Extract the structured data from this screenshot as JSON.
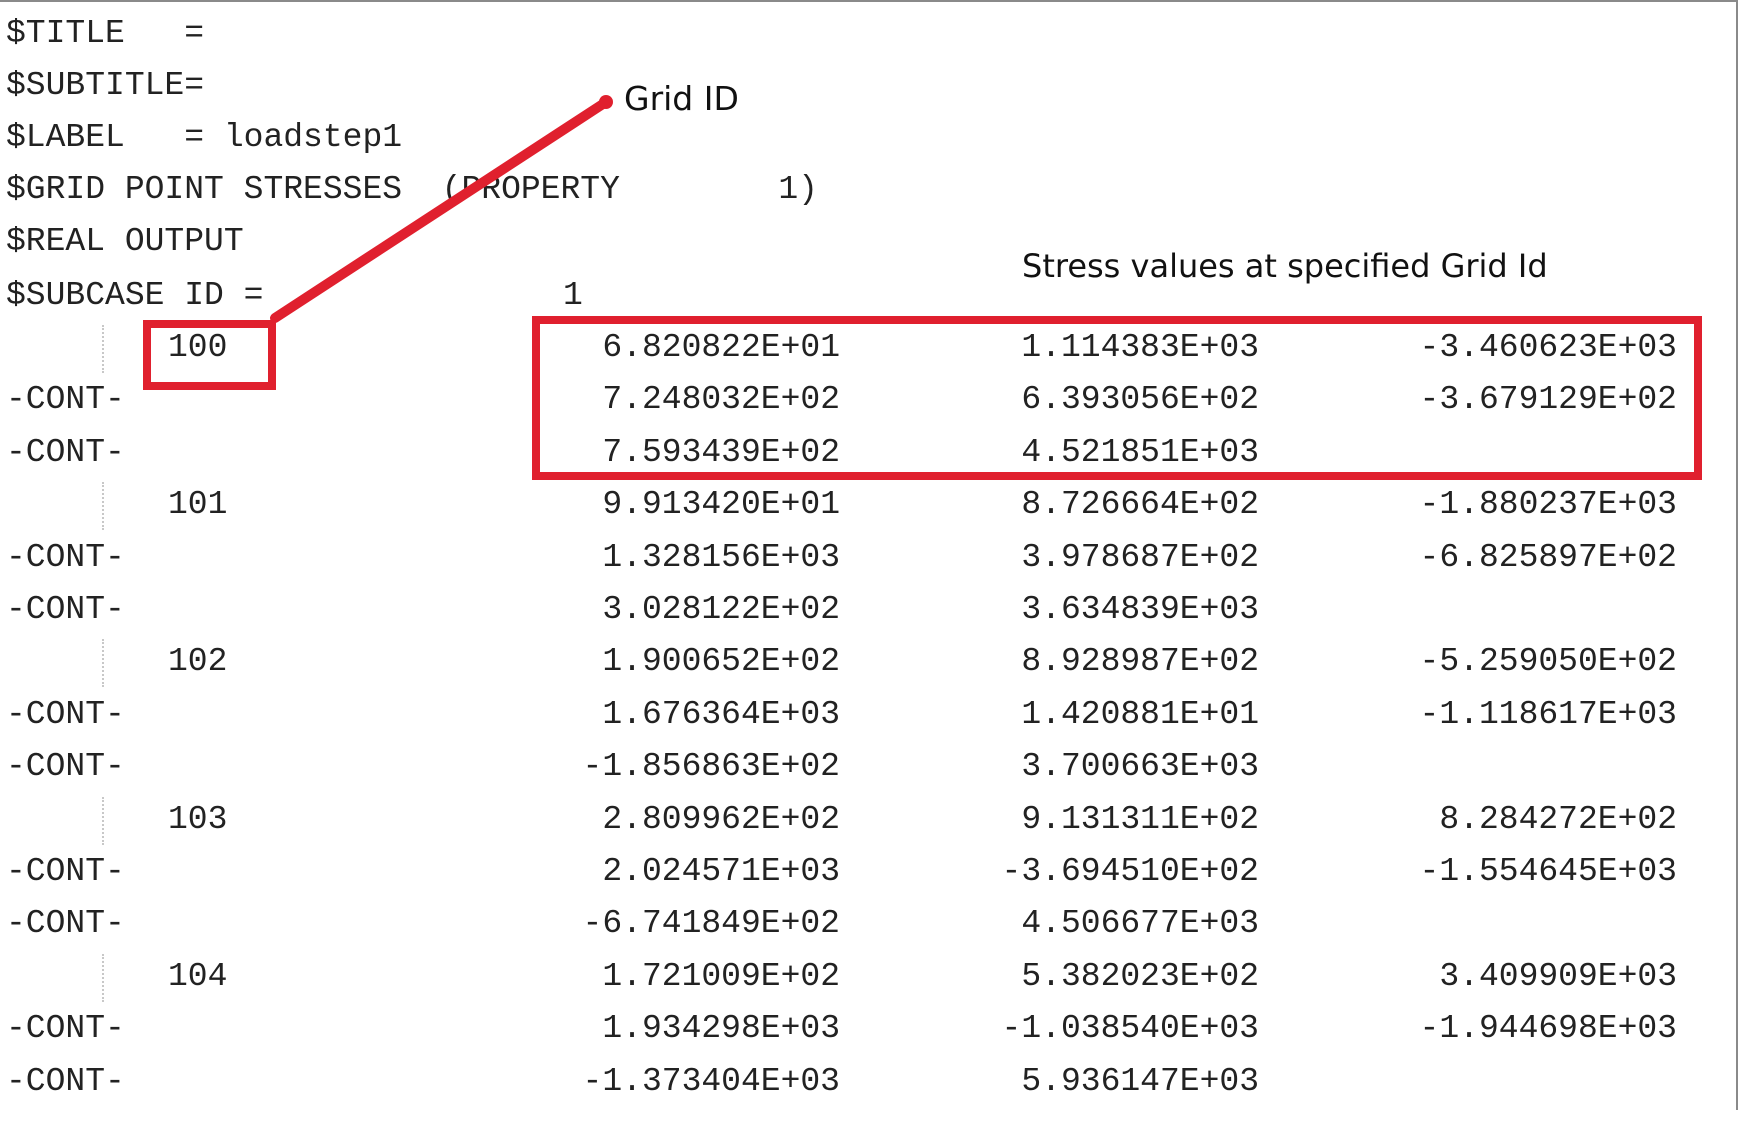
{
  "header": {
    "title_line": "$TITLE   =",
    "subtitle_line": "$SUBTITLE=",
    "label_line": "$LABEL   = loadstep1",
    "grid_stresses_line": "$GRID POINT STRESSES  (PROPERTY        1)",
    "real_output_line": "$REAL OUTPUT",
    "subcase_label": "$SUBCASE ID =",
    "subcase_value": "1"
  },
  "annotations": {
    "grid_id_label": "Grid ID",
    "stress_values_label": "Stress values at specified Grid Id",
    "highlight_color": "#e0202e"
  },
  "table": {
    "cont_label": "-CONT-",
    "grids": [
      {
        "id": "100",
        "rows": [
          [
            "6.820822E+01",
            "1.114383E+03",
            "-3.460623E+03"
          ],
          [
            "7.248032E+02",
            "6.393056E+02",
            "-3.679129E+02"
          ],
          [
            "7.593439E+02",
            "4.521851E+03",
            ""
          ]
        ]
      },
      {
        "id": "101",
        "rows": [
          [
            "9.913420E+01",
            "8.726664E+02",
            "-1.880237E+03"
          ],
          [
            "1.328156E+03",
            "3.978687E+02",
            "-6.825897E+02"
          ],
          [
            "3.028122E+02",
            "3.634839E+03",
            ""
          ]
        ]
      },
      {
        "id": "102",
        "rows": [
          [
            "1.900652E+02",
            "8.928987E+02",
            "-5.259050E+02"
          ],
          [
            "1.676364E+03",
            "1.420881E+01",
            "-1.118617E+03"
          ],
          [
            "-1.856863E+02",
            "3.700663E+03",
            ""
          ]
        ]
      },
      {
        "id": "103",
        "rows": [
          [
            "2.809962E+02",
            "9.131311E+02",
            "8.284272E+02"
          ],
          [
            "2.024571E+03",
            "-3.694510E+02",
            "-1.554645E+03"
          ],
          [
            "-6.741849E+02",
            "4.506677E+03",
            ""
          ]
        ]
      },
      {
        "id": "104",
        "rows": [
          [
            "1.721009E+02",
            "5.382023E+02",
            "3.409909E+03"
          ],
          [
            "1.934298E+03",
            "-1.038540E+03",
            "-1.944698E+03"
          ],
          [
            "-1.373404E+03",
            "5.936147E+03",
            ""
          ]
        ]
      }
    ]
  }
}
